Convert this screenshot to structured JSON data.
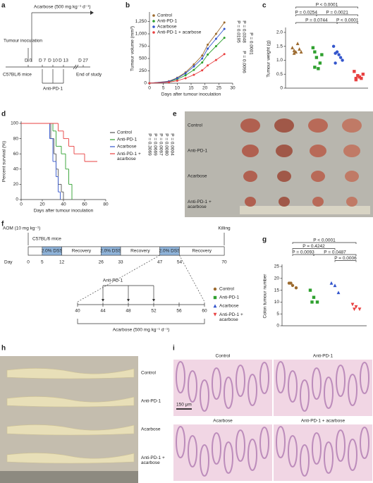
{
  "panel_labels": [
    "a",
    "b",
    "c",
    "d",
    "e",
    "f",
    "g",
    "h",
    "i"
  ],
  "diagram_a": {
    "drug": "Acarbose (500 mg kg⁻¹ d⁻¹)",
    "inoculation": "Tumour inoculation",
    "days": [
      "D 0",
      "D 7",
      "D 10",
      "D 13",
      "D 27"
    ],
    "mice": "C57BL/6 mice",
    "end": "End of study",
    "antibody": "Anti-PD-1"
  },
  "chart_data": [
    {
      "type": "line",
      "ylabel": "Tumour volume (mm³)",
      "xlabel": "Days after tumour inoculation",
      "x": [
        0,
        7,
        10,
        13,
        16,
        19,
        21,
        24,
        27
      ],
      "xlim": [
        0,
        30
      ],
      "xticks": [
        0,
        5,
        10,
        15,
        20,
        25,
        30
      ],
      "ylim": [
        0,
        1400
      ],
      "yticks": [
        0,
        250,
        500,
        750,
        {
          "value": 1000,
          "label": "1,000"
        },
        {
          "value": 1250,
          "label": "1,250"
        }
      ],
      "series": [
        {
          "name": "Control",
          "color": "#9c6a2e",
          "values": [
            0,
            40,
            110,
            220,
            380,
            560,
            780,
            1000,
            1230
          ]
        },
        {
          "name": "Anti-PD-1",
          "color": "#2ea02e",
          "values": [
            0,
            30,
            80,
            160,
            270,
            420,
            580,
            750,
            920
          ]
        },
        {
          "name": "Acarbose",
          "color": "#3355cc",
          "values": [
            0,
            35,
            100,
            200,
            340,
            500,
            700,
            900,
            1100
          ]
        },
        {
          "name": "Anti-PD-1 + acarbose",
          "color": "#e84040",
          "values": [
            0,
            20,
            50,
            100,
            170,
            260,
            360,
            470,
            590
          ]
        }
      ],
      "annotations": [
        "P = 0.0195",
        "P = 0.0348",
        "P = 0.0096",
        "P = 0.0001"
      ]
    },
    {
      "type": "strip",
      "ylabel": "Tumour weight (g)",
      "ylim": [
        0,
        2.1
      ],
      "yticks": [
        0,
        0.5,
        {
          "value": 1,
          "label": "1.0"
        },
        1.5,
        {
          "value": 2,
          "label": "2.0"
        }
      ],
      "series": [
        {
          "color": "#9c6a2e",
          "marker": "triangle",
          "values": [
            1.45,
            1.3,
            1.4,
            1.25,
            1.6,
            1.3,
            1.35
          ]
        },
        {
          "color": "#2ea02e",
          "marker": "square",
          "values": [
            1.45,
            1.1,
            0.9,
            0.75,
            0.7,
            1.2,
            1.3
          ]
        },
        {
          "color": "#3355cc",
          "marker": "circle",
          "values": [
            1.5,
            1.3,
            1.1,
            0.9,
            1.2,
            1.0,
            1.25
          ]
        },
        {
          "color": "#e84040",
          "marker": "square",
          "values": [
            0.6,
            0.45,
            0.35,
            0.3,
            0.4,
            0.5,
            0.35
          ]
        }
      ],
      "annotations": [
        "P < 0.0001",
        "P = 0.0254",
        "P = 0.0021",
        "P = 0.0744",
        "P < 0.0001"
      ]
    },
    {
      "type": "step",
      "ylabel": "Percent survival (%)",
      "xlabel": "Days after tumour inoculation",
      "xlim": [
        0,
        80
      ],
      "xticks": [
        0,
        20,
        40,
        60,
        80
      ],
      "ylim": [
        0,
        100
      ],
      "yticks": [
        0,
        20,
        40,
        60,
        80,
        100
      ],
      "series": [
        {
          "name": "Control",
          "color": "#555555",
          "x": [
            0,
            28,
            31,
            33,
            35,
            38,
            40
          ],
          "values": [
            100,
            80,
            60,
            40,
            20,
            10,
            0
          ]
        },
        {
          "name": "Anti-PD-1",
          "color": "#2ea02e",
          "x": [
            0,
            30,
            33,
            38,
            42,
            45,
            48
          ],
          "values": [
            100,
            90,
            70,
            60,
            40,
            20,
            0
          ]
        },
        {
          "name": "Acarbose",
          "color": "#3355cc",
          "x": [
            0,
            27,
            30,
            33,
            35,
            37
          ],
          "values": [
            100,
            80,
            50,
            30,
            10,
            0
          ]
        },
        {
          "name": "Anti-PD-1 + acarbose",
          "color": "#e84040",
          "x": [
            0,
            35,
            40,
            45,
            50,
            60,
            72
          ],
          "values": [
            100,
            90,
            80,
            70,
            60,
            50,
            50
          ]
        }
      ],
      "annotations": [
        "P = 0.3069",
        "P = 0.0669",
        "P = 0.0097",
        "P = 0.0080",
        "P = 0.0004"
      ]
    },
    {
      "type": "strip",
      "ylabel": "Colon tumour number",
      "ylim": [
        0,
        25
      ],
      "yticks": [
        0,
        5,
        10,
        15,
        20,
        25
      ],
      "series": [
        {
          "color": "#9c6a2e",
          "marker": "circle",
          "values": [
            18,
            17,
            16,
            18
          ]
        },
        {
          "color": "#2ea02e",
          "marker": "square",
          "values": [
            15,
            12,
            10,
            10
          ]
        },
        {
          "color": "#3355cc",
          "marker": "triangle",
          "values": [
            18,
            17,
            14
          ]
        },
        {
          "color": "#e84040",
          "marker": "triangle-down",
          "values": [
            9,
            8,
            7,
            7
          ]
        }
      ],
      "annotations": [
        "P < 0.0001",
        "P = 0.4242",
        "P = 0.0093",
        "P = 0.0487",
        "P = 0.0006"
      ]
    }
  ],
  "photo_e": {
    "rows": [
      "Control",
      "Anti-PD-1",
      "Acarbose",
      "Anti-PD-1 + acarbose"
    ]
  },
  "diagram_f": {
    "aom": "AOM (10 mg kg⁻¹)",
    "mice": "C57BL/6 mice",
    "killing": "Killing",
    "day": "Day",
    "days": [
      0,
      5,
      12,
      26,
      33,
      47,
      54,
      70
    ],
    "segments": [
      "2.0% DSS",
      "Recovery",
      "2.0% DSS",
      "Recovery",
      "2.0% DSS",
      "Recovery"
    ],
    "antibody": "Anti-PD-1",
    "zoom_days": [
      40,
      44,
      48,
      52,
      56,
      60
    ],
    "drug": "Acarbose (500 mg kg⁻¹ d⁻¹)",
    "legend": [
      "Control",
      "Anti-PD-1",
      "Acarbose",
      "Anti-PD-1 + acarbose"
    ]
  },
  "photo_h": {
    "rows": [
      "Control",
      "Anti-PD-1",
      "Acarbose",
      "Anti-PD-1 + acarbose"
    ]
  },
  "histology_i": {
    "titles": [
      "Control",
      "Anti-PD-1",
      "Acarbose",
      "Anti-PD-1 + acarbose"
    ],
    "scale": "150 μm"
  }
}
